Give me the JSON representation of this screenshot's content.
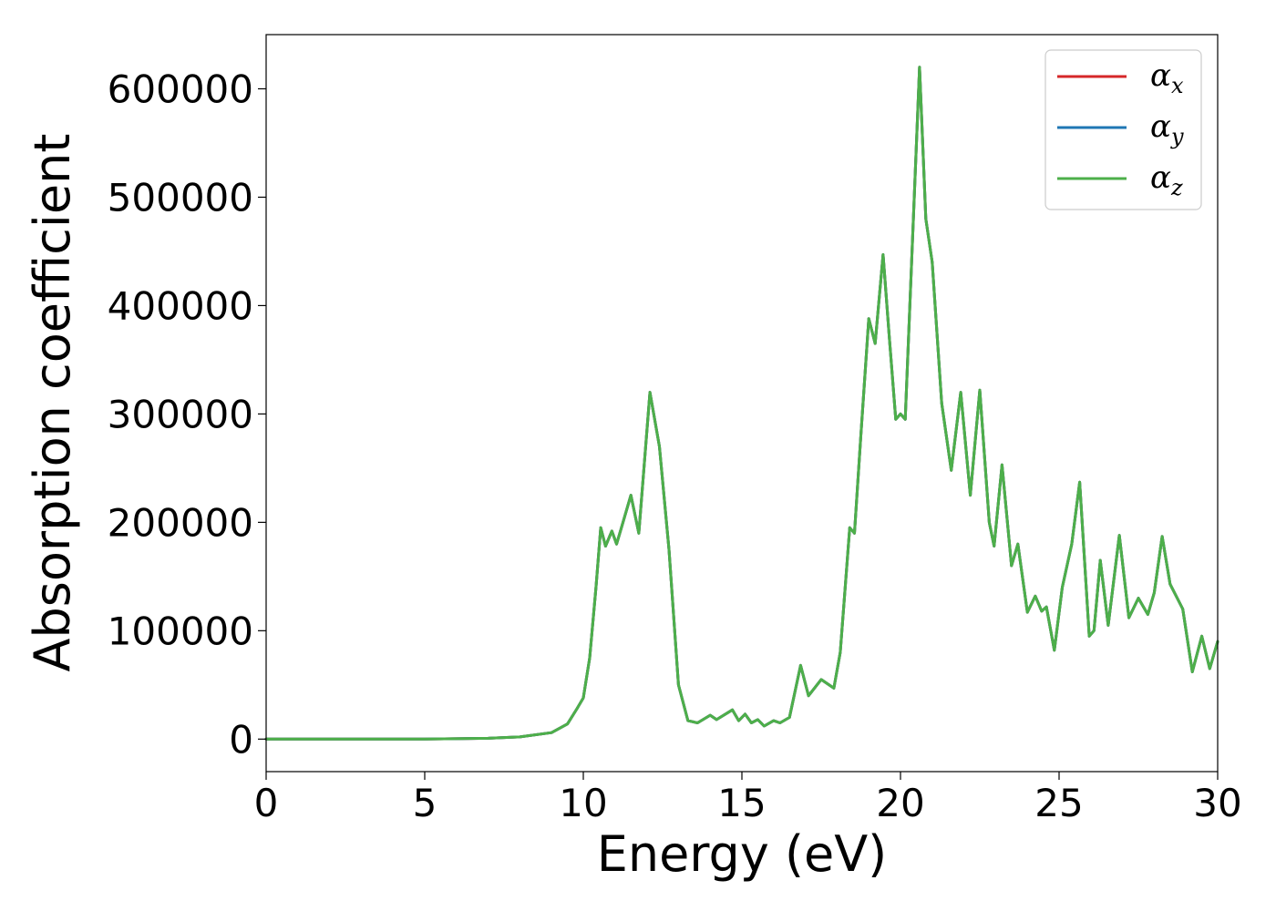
{
  "chart_data": {
    "type": "line",
    "xlabel": "Energy (eV)",
    "ylabel": "Absorption coefficient",
    "xlim": [
      0,
      30
    ],
    "ylim": [
      -30000,
      650000
    ],
    "xticks": [
      0,
      5,
      10,
      15,
      20,
      25,
      30
    ],
    "yticks": [
      0,
      100000,
      200000,
      300000,
      400000,
      500000,
      600000
    ],
    "grid": false,
    "legend_position": "top-right",
    "series": [
      {
        "name": "α",
        "subscript": "x",
        "color": "#d62728"
      },
      {
        "name": "α",
        "subscript": "y",
        "color": "#1f77b4"
      },
      {
        "name": "α",
        "subscript": "z",
        "color": "#4daf4a"
      }
    ],
    "x": [
      0,
      5,
      7,
      8,
      9,
      9.5,
      9.8,
      10.0,
      10.2,
      10.4,
      10.55,
      10.7,
      10.9,
      11.05,
      11.2,
      11.5,
      11.75,
      12.1,
      12.4,
      12.7,
      13.0,
      13.3,
      13.6,
      14.0,
      14.2,
      14.7,
      14.9,
      15.1,
      15.3,
      15.5,
      15.7,
      16.0,
      16.2,
      16.5,
      16.85,
      17.1,
      17.5,
      17.9,
      18.1,
      18.4,
      18.55,
      18.75,
      19.0,
      19.2,
      19.45,
      19.65,
      19.85,
      20.0,
      20.15,
      20.35,
      20.6,
      20.8,
      21.0,
      21.3,
      21.6,
      21.9,
      22.2,
      22.5,
      22.8,
      22.95,
      23.2,
      23.5,
      23.7,
      24.0,
      24.25,
      24.45,
      24.6,
      24.85,
      25.1,
      25.4,
      25.65,
      25.95,
      26.1,
      26.3,
      26.55,
      26.9,
      27.2,
      27.5,
      27.8,
      28.0,
      28.25,
      28.5,
      28.9,
      29.2,
      29.5,
      29.75,
      30.0
    ],
    "values": [
      0,
      0,
      800,
      2000,
      6000,
      14000,
      28000,
      38000,
      75000,
      140000,
      195000,
      178000,
      192000,
      180000,
      195000,
      225000,
      190000,
      320000,
      270000,
      175000,
      50000,
      17000,
      15000,
      22000,
      18000,
      27000,
      17000,
      23000,
      15000,
      18000,
      12000,
      17000,
      15000,
      20000,
      68000,
      40000,
      55000,
      47000,
      80000,
      195000,
      190000,
      280000,
      388000,
      365000,
      447000,
      370000,
      295000,
      300000,
      295000,
      440000,
      620000,
      480000,
      440000,
      310000,
      248000,
      320000,
      225000,
      322000,
      200000,
      178000,
      253000,
      160000,
      180000,
      117000,
      132000,
      118000,
      122000,
      82000,
      140000,
      180000,
      237000,
      95000,
      100000,
      165000,
      105000,
      188000,
      112000,
      130000,
      115000,
      135000,
      187000,
      143000,
      120000,
      62000,
      95000,
      65000,
      90000
    ]
  }
}
